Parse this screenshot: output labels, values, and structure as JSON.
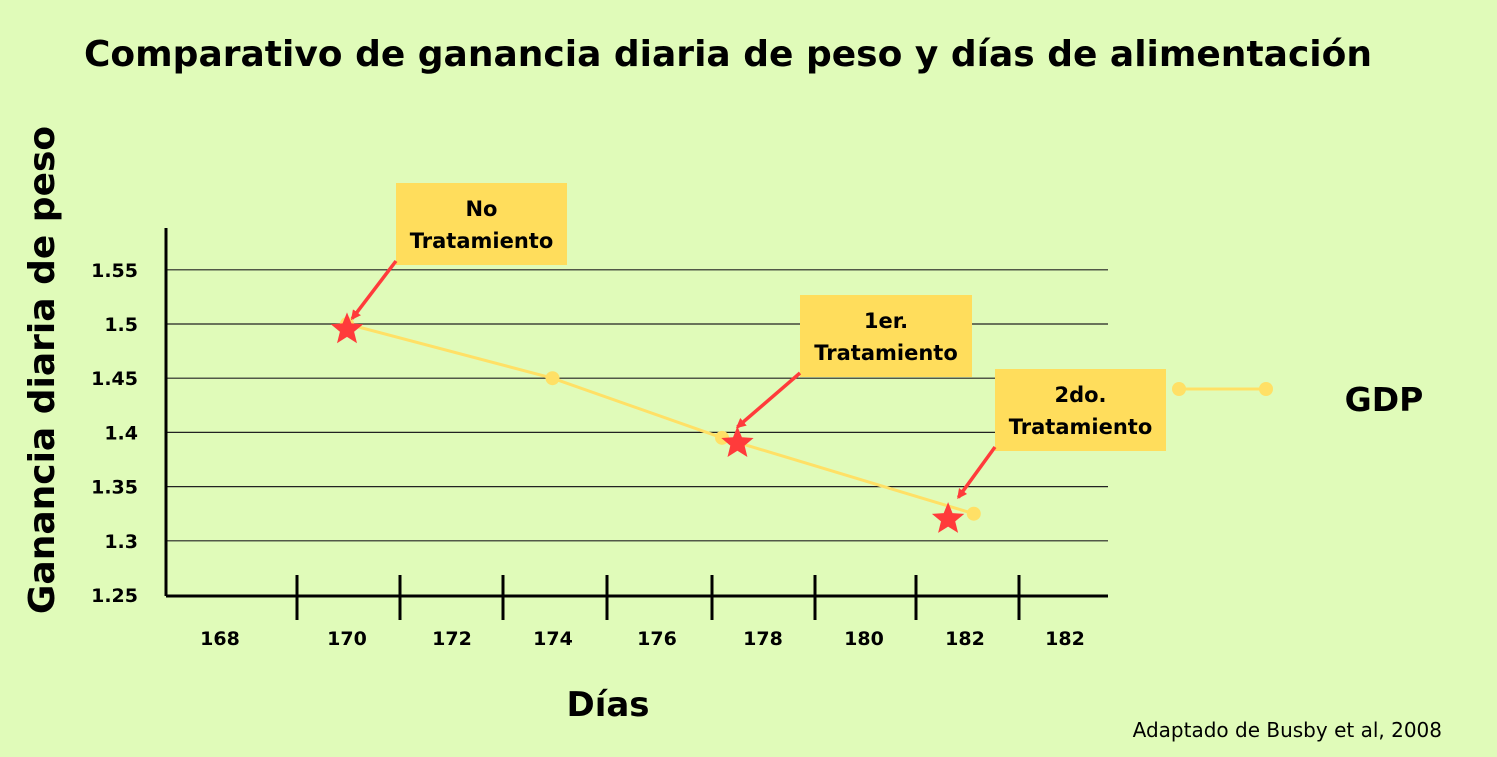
{
  "chart_data": {
    "type": "line",
    "title": "Comparativo de ganancia diaria de peso y días de alimentación",
    "xlabel": "Días",
    "ylabel": "Ganancia diaria de peso",
    "x_tick_labels": [
      "168",
      "170",
      "172",
      "174",
      "176",
      "178",
      "180",
      "182",
      "182"
    ],
    "y_tick_labels": [
      "1.25",
      "1.3",
      "1.35",
      "1.4",
      "1.45",
      "1.5",
      "1.55"
    ],
    "ylim": [
      1.25,
      1.55
    ],
    "grid": true,
    "legend_position": "right",
    "series": [
      {
        "name": "GDP",
        "color": "#ffe066",
        "points": [
          {
            "x": 170,
            "y": 1.5
          },
          {
            "x": 174,
            "y": 1.45
          },
          {
            "x": 177.3,
            "y": 1.395
          },
          {
            "x": 182.2,
            "y": 1.325
          }
        ]
      }
    ],
    "markers": [
      {
        "x": 170,
        "y": 1.495,
        "symbol": "star",
        "color": "#ff3b3b"
      },
      {
        "x": 177.6,
        "y": 1.39,
        "symbol": "star",
        "color": "#ff3b3b"
      },
      {
        "x": 181.7,
        "y": 1.32,
        "symbol": "star",
        "color": "#ff3b3b"
      }
    ],
    "annotations": [
      {
        "lines": [
          "No",
          "Tratamiento"
        ],
        "target_x": 170.1,
        "target_y": 1.505
      },
      {
        "lines": [
          "1er.",
          "Tratamiento"
        ],
        "target_x": 177.6,
        "target_y": 1.405
      },
      {
        "lines": [
          "2do.",
          "Tratamiento"
        ],
        "target_x": 181.9,
        "target_y": 1.34
      }
    ],
    "source": "Adaptado de Busby et al, 2008",
    "colors": {
      "background": "#e0fbb9",
      "annotation_box": "#ffdd5c",
      "arrow": "#ff3b3b",
      "axis": "#000000"
    }
  }
}
